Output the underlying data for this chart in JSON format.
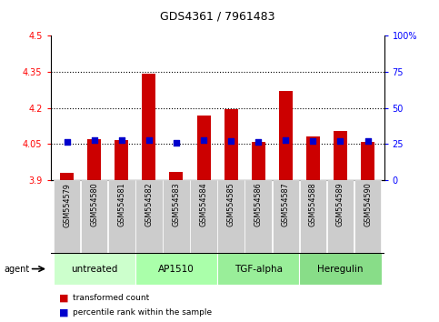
{
  "title": "GDS4361 / 7961483",
  "samples": [
    "GSM554579",
    "GSM554580",
    "GSM554581",
    "GSM554582",
    "GSM554583",
    "GSM554584",
    "GSM554585",
    "GSM554586",
    "GSM554587",
    "GSM554588",
    "GSM554589",
    "GSM554590"
  ],
  "red_bar_tops": [
    3.93,
    4.07,
    4.065,
    4.34,
    3.935,
    4.17,
    4.195,
    4.06,
    4.27,
    4.08,
    4.105,
    4.06
  ],
  "blue_y": [
    4.058,
    4.067,
    4.065,
    4.068,
    4.057,
    4.065,
    4.063,
    4.06,
    4.066,
    4.063,
    4.062,
    4.062
  ],
  "bar_bottom": 3.9,
  "ylim_left": [
    3.9,
    4.5
  ],
  "ylim_right": [
    0,
    100
  ],
  "yticks_left": [
    3.9,
    4.05,
    4.2,
    4.35,
    4.5
  ],
  "ytick_labels_left": [
    "3.9",
    "4.05",
    "4.2",
    "4.35",
    "4.5"
  ],
  "yticks_right": [
    0,
    25,
    50,
    75,
    100
  ],
  "ytick_labels_right": [
    "0",
    "25",
    "50",
    "75",
    "100%"
  ],
  "dotted_lines": [
    4.05,
    4.2,
    4.35
  ],
  "bar_color": "#cc0000",
  "blue_color": "#0000cc",
  "agents": [
    {
      "label": "untreated",
      "start": 0,
      "end": 3
    },
    {
      "label": "AP1510",
      "start": 3,
      "end": 6
    },
    {
      "label": "TGF-alpha",
      "start": 6,
      "end": 9
    },
    {
      "label": "Heregulin",
      "start": 9,
      "end": 12
    }
  ],
  "agent_fill_colors": [
    "#ccffcc",
    "#aaffaa",
    "#99ee99",
    "#88dd88"
  ],
  "agent_label": "agent",
  "legend_red": "transformed count",
  "legend_blue": "percentile rank within the sample",
  "bg_color": "#ffffff",
  "plot_bg": "#ffffff",
  "tick_area_color": "#cccccc",
  "bar_width": 0.5
}
